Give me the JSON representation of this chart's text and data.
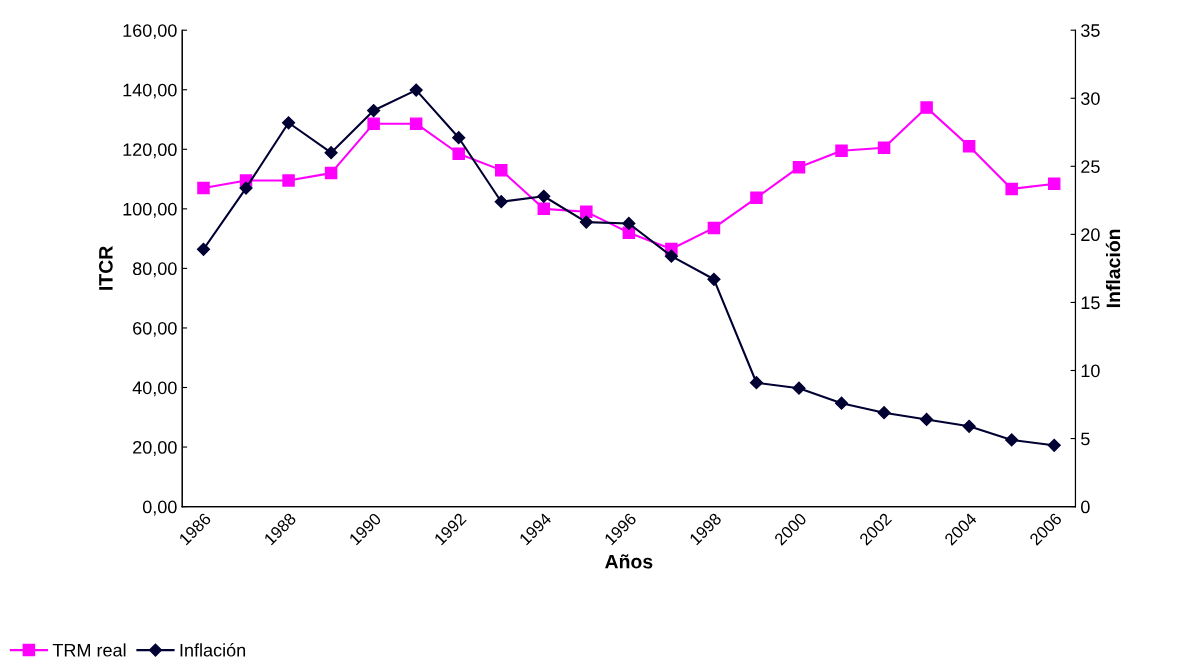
{
  "chart_data": {
    "type": "line",
    "xlabel": "Años",
    "ylabel": "ITCR",
    "y2label": "Inflación",
    "categories": [
      "1986",
      null,
      "1988",
      null,
      "1990",
      null,
      "1992",
      null,
      "1994",
      null,
      "1996",
      null,
      "1998",
      null,
      "2000",
      null,
      "2002",
      null,
      "2004",
      null,
      "2006"
    ],
    "series": [
      {
        "name": "TRM real",
        "color": "#ff00ff",
        "marker": "square",
        "values": [
          107,
          109.5,
          109.5,
          112,
          128.6,
          128.6,
          118.5,
          113,
          100,
          99,
          92,
          86.5,
          93.6,
          103.7,
          114,
          119.5,
          120.5,
          134,
          121,
          106.7,
          108.4
        ]
      },
      {
        "name": "Inflación",
        "color": "#000033",
        "marker": "diamond",
        "axis": "y2",
        "values": [
          18.9,
          23.4,
          28.2,
          26.0,
          29.1,
          30.6,
          27.1,
          22.4,
          22.8,
          20.9,
          20.8,
          18.4,
          16.7,
          9.1,
          8.7,
          7.6,
          6.9,
          6.4,
          5.9,
          4.9,
          4.5
        ]
      }
    ],
    "ylim": [
      0,
      160
    ],
    "yticks": [
      {
        "value": 0,
        "label": "0,00"
      },
      {
        "value": 20,
        "label": "20,00"
      },
      {
        "value": 40,
        "label": "40,00"
      },
      {
        "value": 60,
        "label": "60,00"
      },
      {
        "value": 80,
        "label": "80,00"
      },
      {
        "value": 100,
        "label": "100,00"
      },
      {
        "value": 120,
        "label": "120,00"
      },
      {
        "value": 140,
        "label": "140,00"
      },
      {
        "value": 160,
        "label": "160,00"
      }
    ],
    "y2lim": [
      0,
      35
    ],
    "y2ticks": [
      0,
      5,
      10,
      15,
      20,
      25,
      30,
      35
    ],
    "grid": false,
    "legend": "bottom left",
    "line_style": "solid"
  }
}
